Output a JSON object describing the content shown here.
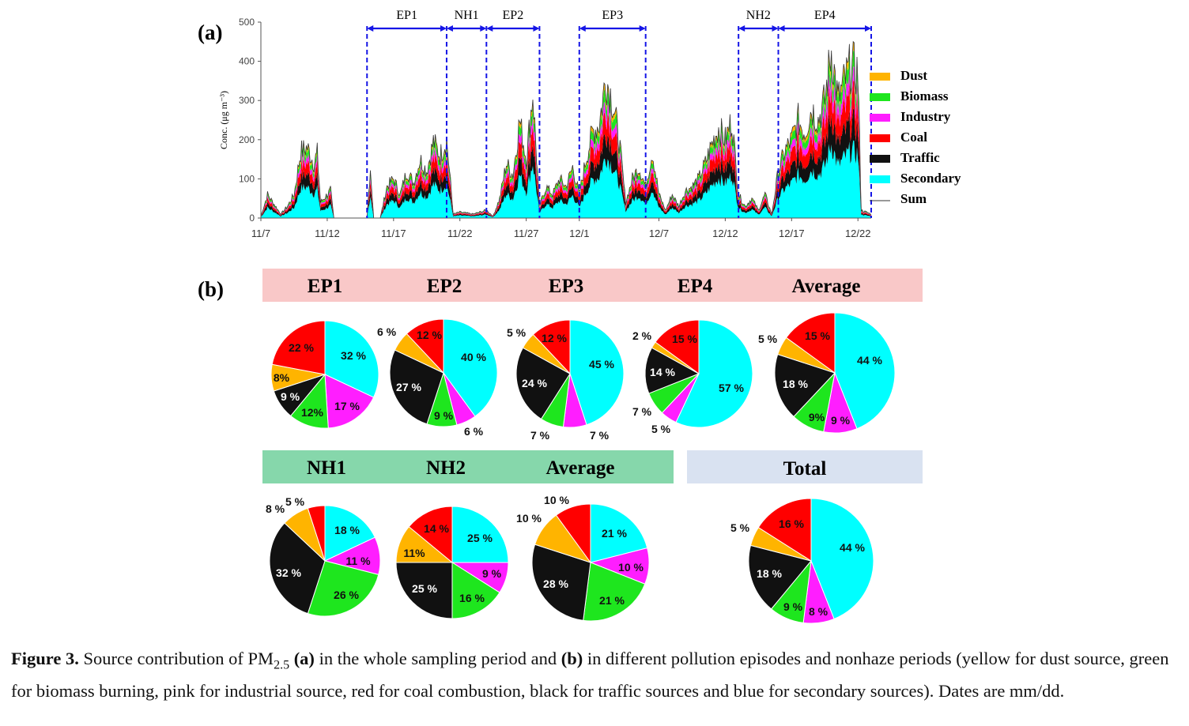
{
  "colors": {
    "dust": "#ffb400",
    "biomass": "#1ee61e",
    "industry": "#ff1eff",
    "coal": "#ff0000",
    "traffic": "#111111",
    "secondary": "#00ffff",
    "episode_line": "#1515e6",
    "haze_band": "#f9c8c8",
    "nonhaze_band": "#86d7ab",
    "total_band": "#d9e2f1"
  },
  "panel_a": {
    "label": "(a)",
    "ylabel": "Conc. (μg m⁻³)",
    "y_ticks": [
      "0",
      "100",
      "200",
      "300",
      "400",
      "500"
    ],
    "x_ticks": [
      "11/7",
      "11/12",
      "11/17",
      "11/22",
      "11/27",
      "12/1",
      "12/7",
      "12/12",
      "12/17",
      "12/22"
    ],
    "legend": [
      "Dust",
      "Biomass",
      "Industry",
      "Coal",
      "Traffic",
      "Secondary",
      "Sum"
    ],
    "episodes": [
      "EP1",
      "NH1",
      "EP2",
      "EP3",
      "NH2",
      "EP4"
    ]
  },
  "panel_b": {
    "label": "(b)",
    "haze_headers": [
      "EP1",
      "EP2",
      "EP3",
      "EP4",
      "Average"
    ],
    "nonhaze_headers": [
      "NH1",
      "NH2",
      "Average"
    ],
    "total_header": "Total"
  },
  "chart_data": [
    {
      "type": "area",
      "title": "",
      "xlabel": "",
      "ylabel": "Conc. (μg m⁻³)",
      "ylim": [
        0,
        500
      ],
      "x_range": [
        "11/7",
        "12/23"
      ],
      "stack_order": [
        "Secondary",
        "Traffic",
        "Coal",
        "Industry",
        "Biomass",
        "Dust"
      ],
      "series_share": {
        "Secondary": 0.44,
        "Traffic": 0.18,
        "Coal": 0.16,
        "Industry": 0.08,
        "Biomass": 0.09,
        "Dust": 0.05
      },
      "sum_profile": [
        {
          "x": "11/7",
          "y": 5
        },
        {
          "x": "11/7 12h",
          "y": 60
        },
        {
          "x": "11/8",
          "y": 35
        },
        {
          "x": "11/8 12h",
          "y": 10
        },
        {
          "x": "11/9",
          "y": 30
        },
        {
          "x": "11/9 12h",
          "y": 60
        },
        {
          "x": "11/10",
          "y": 170
        },
        {
          "x": "11/10 12h",
          "y": 180
        },
        {
          "x": "11/11",
          "y": 140
        },
        {
          "x": "11/11 6h",
          "y": 165
        },
        {
          "x": "11/11 12h",
          "y": 40
        },
        {
          "x": "11/12",
          "y": 60
        },
        {
          "x": "11/12 6h",
          "y": 70
        },
        {
          "x": "11/12 12h",
          "y": 0
        },
        {
          "x": "11/15",
          "y": 0
        },
        {
          "x": "11/15 6h",
          "y": 130
        },
        {
          "x": "11/15 12h",
          "y": 0
        },
        {
          "x": "11/16",
          "y": 0
        },
        {
          "x": "11/16 12h",
          "y": 80
        },
        {
          "x": "11/17",
          "y": 100
        },
        {
          "x": "11/17 12h",
          "y": 60
        },
        {
          "x": "11/18",
          "y": 120
        },
        {
          "x": "11/18 12h",
          "y": 90
        },
        {
          "x": "11/19",
          "y": 150
        },
        {
          "x": "11/19 12h",
          "y": 120
        },
        {
          "x": "11/20",
          "y": 195
        },
        {
          "x": "11/20 12h",
          "y": 160
        },
        {
          "x": "11/21",
          "y": 200
        },
        {
          "x": "11/21 12h",
          "y": 10
        },
        {
          "x": "11/22",
          "y": 15
        },
        {
          "x": "11/23",
          "y": 10
        },
        {
          "x": "11/24",
          "y": 20
        },
        {
          "x": "11/24 12h",
          "y": 5
        },
        {
          "x": "11/25",
          "y": 50
        },
        {
          "x": "11/25 12h",
          "y": 140
        },
        {
          "x": "11/26",
          "y": 110
        },
        {
          "x": "11/26 12h",
          "y": 250
        },
        {
          "x": "11/27",
          "y": 150
        },
        {
          "x": "11/27 12h",
          "y": 320
        },
        {
          "x": "11/28",
          "y": 30
        },
        {
          "x": "11/28 12h",
          "y": 80
        },
        {
          "x": "11/29",
          "y": 60
        },
        {
          "x": "11/29 12h",
          "y": 100
        },
        {
          "x": "11/30",
          "y": 80
        },
        {
          "x": "11/30 12h",
          "y": 130
        },
        {
          "x": "12/1",
          "y": 60
        },
        {
          "x": "12/1 12h",
          "y": 150
        },
        {
          "x": "12/2",
          "y": 220
        },
        {
          "x": "12/2 12h",
          "y": 240
        },
        {
          "x": "12/3",
          "y": 360
        },
        {
          "x": "12/3 12h",
          "y": 300
        },
        {
          "x": "12/4",
          "y": 200
        },
        {
          "x": "12/4 12h",
          "y": 40
        },
        {
          "x": "12/5",
          "y": 100
        },
        {
          "x": "12/5 12h",
          "y": 130
        },
        {
          "x": "12/6",
          "y": 80
        },
        {
          "x": "12/6 12h",
          "y": 170
        },
        {
          "x": "12/7",
          "y": 60
        },
        {
          "x": "12/7 12h",
          "y": 20
        },
        {
          "x": "12/8",
          "y": 60
        },
        {
          "x": "12/8 12h",
          "y": 30
        },
        {
          "x": "12/9",
          "y": 70
        },
        {
          "x": "12/9 12h",
          "y": 80
        },
        {
          "x": "12/10",
          "y": 100
        },
        {
          "x": "12/10 12h",
          "y": 140
        },
        {
          "x": "12/11",
          "y": 190
        },
        {
          "x": "12/11 12h",
          "y": 230
        },
        {
          "x": "12/12",
          "y": 200
        },
        {
          "x": "12/12 12h",
          "y": 250
        },
        {
          "x": "12/13",
          "y": 60
        },
        {
          "x": "12/13 12h",
          "y": 30
        },
        {
          "x": "12/14",
          "y": 50
        },
        {
          "x": "12/14 12h",
          "y": 20
        },
        {
          "x": "12/15",
          "y": 60
        },
        {
          "x": "12/15 12h",
          "y": 10
        },
        {
          "x": "12/16",
          "y": 120
        },
        {
          "x": "12/16 12h",
          "y": 170
        },
        {
          "x": "12/17",
          "y": 200
        },
        {
          "x": "12/17 12h",
          "y": 250
        },
        {
          "x": "12/18",
          "y": 220
        },
        {
          "x": "12/18 12h",
          "y": 280
        },
        {
          "x": "12/19",
          "y": 250
        },
        {
          "x": "12/19 12h",
          "y": 300
        },
        {
          "x": "12/20",
          "y": 430
        },
        {
          "x": "12/20 12h",
          "y": 300
        },
        {
          "x": "12/21",
          "y": 350
        },
        {
          "x": "12/21 12h",
          "y": 390
        },
        {
          "x": "12/22",
          "y": 370
        },
        {
          "x": "12/22 6h",
          "y": 20
        },
        {
          "x": "12/23",
          "y": 10
        }
      ],
      "episode_bounds": [
        {
          "name": "EP1",
          "start": "11/15",
          "end": "11/21"
        },
        {
          "name": "NH1",
          "start": "11/21",
          "end": "11/24"
        },
        {
          "name": "EP2",
          "start": "11/24",
          "end": "11/28"
        },
        {
          "name": "EP3",
          "start": "12/1",
          "end": "12/6"
        },
        {
          "name": "NH2",
          "start": "12/13",
          "end": "12/16"
        },
        {
          "name": "EP4",
          "start": "12/16",
          "end": "12/23"
        }
      ]
    },
    {
      "type": "pie",
      "pies": [
        {
          "name": "EP1",
          "slices": {
            "Secondary": 32,
            "Industry": 17,
            "Biomass": 12,
            "Traffic": 9,
            "Dust": 8,
            "Coal": 22
          },
          "labels": {
            "Secondary": "32 %",
            "Industry": "17 %",
            "Biomass": "12%",
            "Traffic": "9 %",
            "Dust": "8%",
            "Coal": "22 %"
          }
        },
        {
          "name": "EP2",
          "slices": {
            "Secondary": 40,
            "Industry": 6,
            "Biomass": 9,
            "Traffic": 27,
            "Dust": 6,
            "Coal": 12
          },
          "labels": {
            "Secondary": "40 %",
            "Industry": "6 %",
            "Biomass": "9 %",
            "Traffic": "27 %",
            "Dust": "6 %",
            "Coal": "12 %"
          }
        },
        {
          "name": "EP3",
          "slices": {
            "Secondary": 45,
            "Industry": 7,
            "Biomass": 7,
            "Traffic": 24,
            "Dust": 5,
            "Coal": 12
          },
          "labels": {
            "Secondary": "45 %",
            "Industry": "7 %",
            "Biomass": "7 %",
            "Traffic": "24 %",
            "Dust": "5 %",
            "Coal": "12 %"
          }
        },
        {
          "name": "EP4",
          "slices": {
            "Secondary": 57,
            "Industry": 5,
            "Biomass": 7,
            "Traffic": 14,
            "Dust": 2,
            "Coal": 15
          },
          "labels": {
            "Secondary": "57 %",
            "Industry": "5 %",
            "Biomass": "7 %",
            "Traffic": "14 %",
            "Dust": "2 %",
            "Coal": "15 %"
          }
        },
        {
          "name": "Average (EP)",
          "slices": {
            "Secondary": 44,
            "Industry": 9,
            "Biomass": 9,
            "Traffic": 18,
            "Dust": 5,
            "Coal": 15
          },
          "labels": {
            "Secondary": "44 %",
            "Industry": "9 %",
            "Biomass": "9%",
            "Traffic": "18 %",
            "Dust": "5 %",
            "Coal": "15 %"
          }
        },
        {
          "name": "NH1",
          "slices": {
            "Secondary": 18,
            "Industry": 11,
            "Biomass": 26,
            "Traffic": 32,
            "Dust": 8,
            "Coal": 5
          },
          "labels": {
            "Secondary": "18 %",
            "Industry": "11 %",
            "Biomass": "26 %",
            "Traffic": "32 %",
            "Dust": "8 %",
            "Coal": "5 %"
          }
        },
        {
          "name": "NH2",
          "slices": {
            "Secondary": 25,
            "Industry": 9,
            "Biomass": 16,
            "Traffic": 25,
            "Dust": 11,
            "Coal": 14
          },
          "labels": {
            "Secondary": "25 %",
            "Industry": "9 %",
            "Biomass": "16 %",
            "Traffic": "25 %",
            "Dust": "11%",
            "Coal": "14 %"
          }
        },
        {
          "name": "Average (NH)",
          "slices": {
            "Secondary": 21,
            "Industry": 10,
            "Biomass": 21,
            "Traffic": 28,
            "Dust": 10,
            "Coal": 10
          },
          "labels": {
            "Secondary": "21 %",
            "Industry": "10 %",
            "Biomass": "21 %",
            "Traffic": "28 %",
            "Dust": "10 %",
            "Coal": "10 %"
          }
        },
        {
          "name": "Total",
          "slices": {
            "Secondary": 44,
            "Industry": 8,
            "Biomass": 9,
            "Traffic": 18,
            "Dust": 5,
            "Coal": 16
          },
          "labels": {
            "Secondary": "44 %",
            "Industry": "8 %",
            "Biomass": "9 %",
            "Traffic": "18 %",
            "Dust": "5 %",
            "Coal": "16 %"
          }
        }
      ]
    }
  ],
  "caption": {
    "figure_label": "Figure 3.",
    "text_1": " Source contribution of PM",
    "subscript": "2.5",
    "text_2": " ",
    "a_label": "(a)",
    "text_3": " in the whole sampling period and ",
    "b_label": "(b)",
    "text_4": " in different pollution episodes and nonhaze periods (yellow for dust source, green for biomass burning, pink for industrial source, red for coal combustion, black for traffic sources and blue for secondary sources). Dates are mm/dd."
  }
}
